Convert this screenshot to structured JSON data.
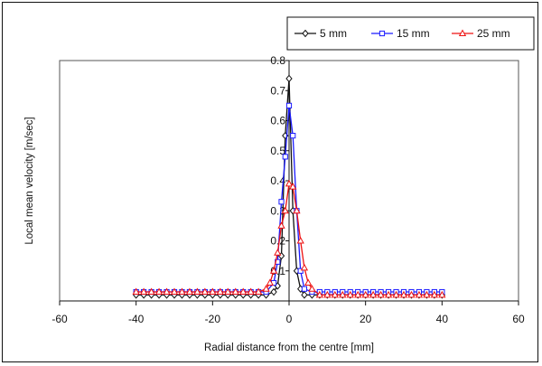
{
  "chart_data": {
    "type": "line",
    "xlabel": "Radial distance from the centre [mm]",
    "ylabel": "Local mean velocity [m/sec]",
    "xlim": [
      -60,
      60
    ],
    "ylim": [
      0,
      0.8
    ],
    "xticks": [
      -60,
      -40,
      -20,
      0,
      20,
      40,
      60
    ],
    "yticks": [
      0.1,
      0.2,
      0.3,
      0.4,
      0.5,
      0.6,
      0.7,
      0.8
    ],
    "ytick_labels": [
      "0.1",
      "0.2",
      "0.3",
      "0.4",
      "0.5",
      "0.6",
      "0.7",
      "0.8"
    ],
    "grid": false,
    "legend_position": "top-right",
    "series": [
      {
        "name": "5 mm",
        "color": "#111111",
        "marker": "diamond",
        "x": [
          -40,
          -38,
          -36,
          -34,
          -32,
          -30,
          -28,
          -26,
          -24,
          -22,
          -20,
          -18,
          -16,
          -14,
          -12,
          -10,
          -8,
          -6,
          -4,
          -3,
          -2,
          -1,
          0,
          1,
          2,
          3,
          4,
          6,
          8,
          10,
          12,
          14,
          16,
          18,
          20,
          22,
          24,
          26,
          28,
          30,
          32,
          34,
          36,
          38,
          40
        ],
        "y": [
          0.02,
          0.02,
          0.02,
          0.02,
          0.02,
          0.02,
          0.02,
          0.02,
          0.02,
          0.02,
          0.02,
          0.02,
          0.02,
          0.02,
          0.02,
          0.02,
          0.02,
          0.02,
          0.03,
          0.05,
          0.15,
          0.55,
          0.74,
          0.3,
          0.1,
          0.04,
          0.02,
          0.02,
          0.02,
          0.02,
          0.02,
          0.02,
          0.02,
          0.02,
          0.02,
          0.02,
          0.02,
          0.02,
          0.02,
          0.02,
          0.02,
          0.02,
          0.02,
          0.02,
          0.02
        ]
      },
      {
        "name": "15 mm",
        "color": "#1a1aff",
        "marker": "square",
        "x": [
          -40,
          -38,
          -36,
          -34,
          -32,
          -30,
          -28,
          -26,
          -24,
          -22,
          -20,
          -18,
          -16,
          -14,
          -12,
          -10,
          -8,
          -6,
          -4,
          -3,
          -2,
          -1,
          0,
          1,
          2,
          3,
          4,
          6,
          8,
          10,
          12,
          14,
          16,
          18,
          20,
          22,
          24,
          26,
          28,
          30,
          32,
          34,
          36,
          38,
          40
        ],
        "y": [
          0.03,
          0.03,
          0.03,
          0.03,
          0.03,
          0.03,
          0.03,
          0.03,
          0.03,
          0.03,
          0.03,
          0.03,
          0.03,
          0.03,
          0.03,
          0.03,
          0.03,
          0.03,
          0.06,
          0.13,
          0.33,
          0.48,
          0.65,
          0.55,
          0.3,
          0.1,
          0.04,
          0.03,
          0.03,
          0.03,
          0.03,
          0.03,
          0.03,
          0.03,
          0.03,
          0.03,
          0.03,
          0.03,
          0.03,
          0.03,
          0.03,
          0.03,
          0.03,
          0.03,
          0.03
        ]
      },
      {
        "name": "25 mm",
        "color": "#ee1111",
        "marker": "triangle",
        "x": [
          -40,
          -38,
          -36,
          -34,
          -32,
          -30,
          -28,
          -26,
          -24,
          -22,
          -20,
          -18,
          -16,
          -14,
          -12,
          -10,
          -8,
          -6,
          -5,
          -4,
          -3,
          -2,
          -1,
          0,
          1,
          2,
          3,
          4,
          5,
          6,
          8,
          10,
          12,
          14,
          16,
          18,
          20,
          22,
          24,
          26,
          28,
          30,
          32,
          34,
          36,
          38,
          40
        ],
        "y": [
          0.03,
          0.03,
          0.03,
          0.03,
          0.03,
          0.03,
          0.03,
          0.03,
          0.03,
          0.03,
          0.03,
          0.03,
          0.03,
          0.03,
          0.03,
          0.03,
          0.03,
          0.04,
          0.06,
          0.1,
          0.16,
          0.25,
          0.3,
          0.39,
          0.38,
          0.3,
          0.2,
          0.11,
          0.06,
          0.04,
          0.02,
          0.02,
          0.02,
          0.02,
          0.02,
          0.02,
          0.02,
          0.02,
          0.02,
          0.02,
          0.02,
          0.02,
          0.02,
          0.02,
          0.02,
          0.02,
          0.02
        ]
      }
    ]
  }
}
